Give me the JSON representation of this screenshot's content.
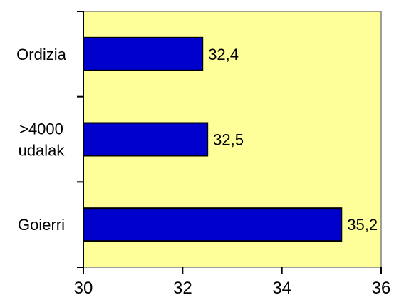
{
  "chart_data": {
    "type": "bar",
    "orientation": "horizontal",
    "categories": [
      {
        "lines": [
          "Ordizia"
        ],
        "value": 32.4,
        "value_label": "32,4"
      },
      {
        "lines": [
          ">4000",
          "udalak"
        ],
        "value": 32.5,
        "value_label": "32,5"
      },
      {
        "lines": [
          "Goierri"
        ],
        "value": 35.2,
        "value_label": "35,2"
      }
    ],
    "xlim": [
      30,
      36
    ],
    "x_ticks": [
      {
        "value": 30,
        "label": "30"
      },
      {
        "value": 32,
        "label": "32"
      },
      {
        "value": 34,
        "label": "34"
      },
      {
        "value": 36,
        "label": "36"
      }
    ],
    "title": "",
    "xlabel": "",
    "ylabel": "",
    "grid": false,
    "legend": "none",
    "colors": {
      "plot_background": "#ffff99",
      "bar_fill": "#0000cc",
      "bar_stroke": "#000000",
      "axis": "#000000",
      "plot_border": "#808080"
    }
  }
}
